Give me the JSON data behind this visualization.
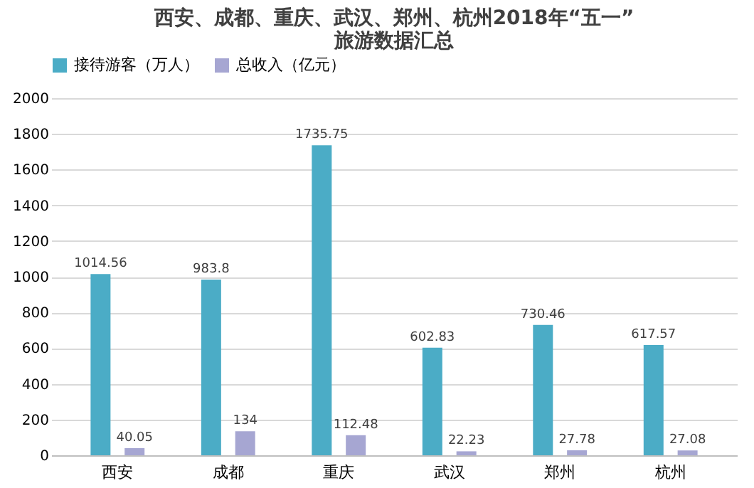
{
  "chart_data": {
    "type": "bar",
    "title": "西安、成都、重庆、武汉、郑州、杭州2018年“五一”旅游数据汇总",
    "categories": [
      "西安",
      "成都",
      "重庆",
      "武汉",
      "郑州",
      "杭州"
    ],
    "series": [
      {
        "name": "接待游客（万人）",
        "color": "#4bacc6",
        "values": [
          1014.56,
          983.8,
          1735.75,
          602.83,
          730.46,
          617.57
        ]
      },
      {
        "name": "总收入（亿元）",
        "color": "#a6a6d2",
        "values": [
          40.05,
          134,
          112.48,
          22.23,
          27.78,
          27.08
        ]
      }
    ],
    "ylim": [
      0,
      2000
    ],
    "yticks": [
      0,
      200,
      400,
      600,
      800,
      1000,
      1200,
      1400,
      1600,
      1800,
      2000
    ],
    "grid": "y",
    "legend": "top",
    "data_labels": true
  }
}
